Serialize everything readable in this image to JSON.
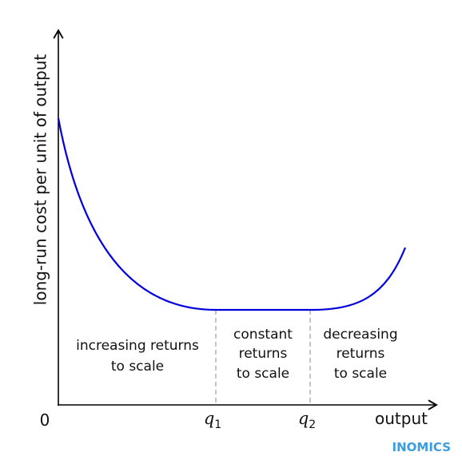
{
  "axes": {
    "y_label": "long-run cost per unit of output",
    "x_label": "output",
    "origin": "0"
  },
  "markers": [
    {
      "symbol": "q",
      "subscript": "1"
    },
    {
      "symbol": "q",
      "subscript": "2"
    }
  ],
  "regions": [
    {
      "lines": [
        "increasing returns",
        "to scale"
      ]
    },
    {
      "lines": [
        "constant",
        "returns",
        "to scale"
      ]
    },
    {
      "lines": [
        "decreasing",
        "returns",
        "to scale"
      ]
    }
  ],
  "brand": "INOMICS"
}
